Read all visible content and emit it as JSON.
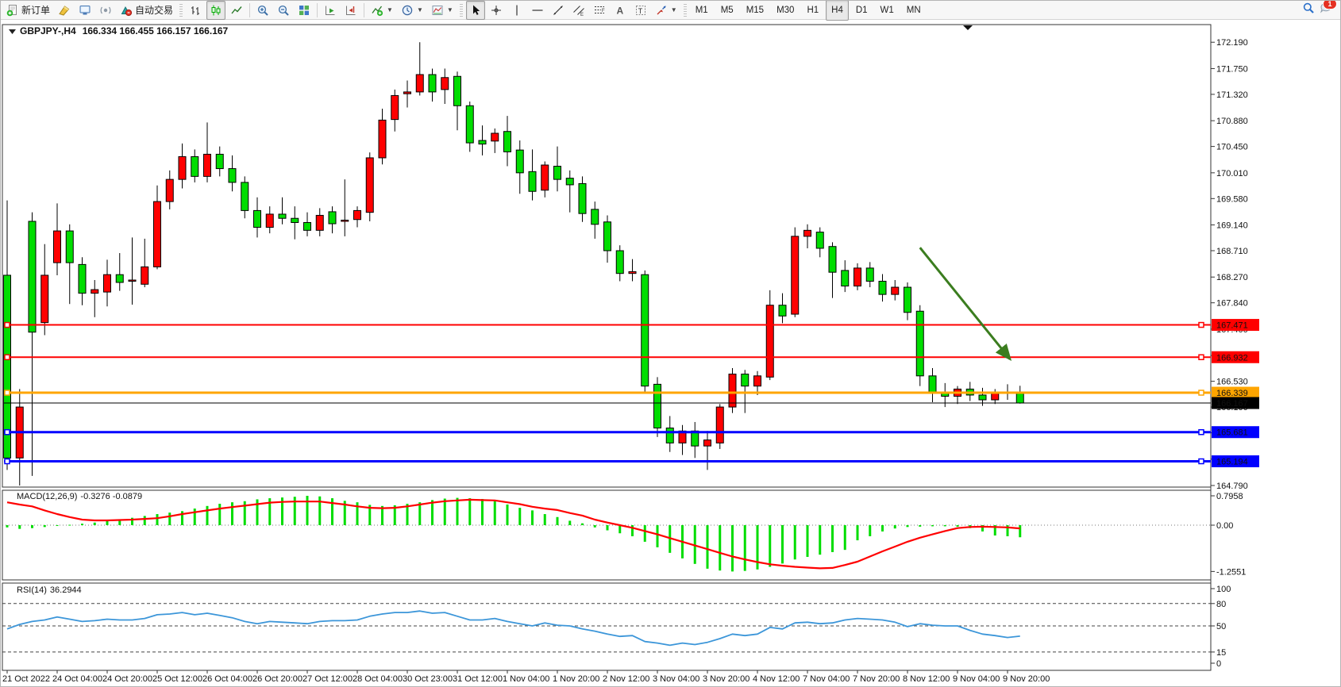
{
  "toolbar": {
    "groups": [
      {
        "items": [
          {
            "name": "new-order-button",
            "icon": "new-order-icon",
            "label": "新订单"
          },
          {
            "name": "styler-button",
            "icon": "chisel-icon"
          },
          {
            "name": "terminal-button",
            "icon": "terminal-icon"
          },
          {
            "name": "news-button",
            "icon": "signal-icon"
          },
          {
            "name": "auto-trading-button",
            "icon": "autotrade-icon",
            "label": "自动交易"
          }
        ]
      },
      {
        "items": [
          {
            "name": "bar-chart-button",
            "icon": "bars-chart-icon"
          },
          {
            "name": "candlestick-chart-button",
            "icon": "candles-chart-icon",
            "pressed": true
          },
          {
            "name": "line-chart-button",
            "icon": "line-chart-icon"
          }
        ]
      },
      {
        "items": [
          {
            "name": "zoom-in-button",
            "icon": "zoom-in-icon"
          },
          {
            "name": "zoom-out-button",
            "icon": "zoom-out-icon"
          },
          {
            "name": "tile-windows-button",
            "icon": "tile-windows-icon"
          }
        ]
      },
      {
        "items": [
          {
            "name": "auto-scroll-button",
            "icon": "autoscroll-icon"
          },
          {
            "name": "chart-shift-button",
            "icon": "chart-shift-icon"
          }
        ]
      },
      {
        "items": [
          {
            "name": "indicators-button",
            "icon": "indicators-icon",
            "caret": true
          },
          {
            "name": "periods-button",
            "icon": "clock-icon",
            "caret": true
          },
          {
            "name": "templates-button",
            "icon": "templates-icon",
            "caret": true
          }
        ]
      },
      {
        "items": [
          {
            "name": "cursor-button",
            "icon": "cursor-icon",
            "pressed": true
          },
          {
            "name": "crosshair-button",
            "icon": "crosshair-icon"
          },
          {
            "name": "vertical-line-button",
            "icon": "vline-icon"
          },
          {
            "name": "horizontal-line-button",
            "icon": "hline-icon"
          },
          {
            "name": "trendline-button",
            "icon": "trendline-icon"
          },
          {
            "name": "equidistant-channel-button",
            "icon": "channel-icon"
          },
          {
            "name": "fibonacci-button",
            "icon": "fibo-icon"
          },
          {
            "name": "text-button",
            "icon": "text-icon"
          },
          {
            "name": "text-label-button",
            "icon": "label-icon"
          },
          {
            "name": "arrows-button",
            "icon": "arrows-icon",
            "caret": true
          }
        ]
      },
      {
        "items": [
          {
            "name": "timeframe-m1-button",
            "label": "M1",
            "tf": true
          },
          {
            "name": "timeframe-m5-button",
            "label": "M5",
            "tf": true
          },
          {
            "name": "timeframe-m15-button",
            "label": "M15",
            "tf": true
          },
          {
            "name": "timeframe-m30-button",
            "label": "M30",
            "tf": true
          },
          {
            "name": "timeframe-h1-button",
            "label": "H1",
            "tf": true
          },
          {
            "name": "timeframe-h4-button",
            "label": "H4",
            "tf": true,
            "pressed": true
          },
          {
            "name": "timeframe-d1-button",
            "label": "D1",
            "tf": true
          },
          {
            "name": "timeframe-w1-button",
            "label": "W1",
            "tf": true
          },
          {
            "name": "timeframe-mn-button",
            "label": "MN",
            "tf": true
          }
        ]
      }
    ],
    "right": [
      {
        "name": "search-button",
        "icon": "search-icon"
      },
      {
        "name": "notifications-button",
        "icon": "chat-icon",
        "badge": "1"
      }
    ]
  },
  "chart": {
    "title_symbol": "GBPJPY-,H4",
    "title_ohlc": "166.334 166.455 166.157 166.167"
  },
  "chart_data": {
    "type": "candlestick",
    "symbol": "GBPJPY-",
    "timeframe": "H4",
    "bull_color": "#ff0000",
    "bear_color": "#00dd00",
    "last_bar": {
      "open": 166.334,
      "high": 166.455,
      "low": 166.157,
      "close": 166.167
    },
    "y_axis_ticks": [
      "172.190",
      "171.750",
      "171.320",
      "170.880",
      "170.450",
      "170.010",
      "169.580",
      "169.140",
      "168.710",
      "168.270",
      "167.840",
      "167.400",
      "166.960",
      "166.530",
      "166.100",
      "165.670",
      "165.230",
      "164.790"
    ],
    "x_labels": [
      "21 Oct 2022",
      "24 Oct 04:00",
      "24 Oct 20:00",
      "25 Oct 12:00",
      "26 Oct 04:00",
      "26 Oct 20:00",
      "27 Oct 12:00",
      "28 Oct 04:00",
      "30 Oct 23:00",
      "31 Oct 12:00",
      "1 Nov 04:00",
      "1 Nov 20:00",
      "2 Nov 12:00",
      "3 Nov 04:00",
      "3 Nov 20:00",
      "4 Nov 12:00",
      "7 Nov 04:00",
      "7 Nov 20:00",
      "8 Nov 12:00",
      "9 Nov 04:00",
      "9 Nov 20:00"
    ],
    "label_every_n_bars": 4,
    "candles": [
      [
        168.3,
        169.55,
        165.05,
        165.25
      ],
      [
        165.25,
        166.4,
        164.79,
        166.1
      ],
      [
        169.2,
        169.35,
        164.95,
        167.35
      ],
      [
        167.51,
        168.82,
        167.3,
        168.3
      ],
      [
        168.51,
        169.5,
        168.3,
        169.04
      ],
      [
        169.04,
        169.15,
        167.82,
        168.51
      ],
      [
        168.48,
        168.6,
        167.8,
        168.0
      ],
      [
        168.0,
        168.22,
        167.6,
        168.06
      ],
      [
        168.02,
        168.56,
        167.78,
        168.31
      ],
      [
        168.31,
        168.67,
        168.04,
        168.18
      ],
      [
        168.2,
        168.93,
        167.81,
        168.22
      ],
      [
        168.15,
        168.91,
        168.1,
        168.44
      ],
      [
        168.44,
        169.8,
        168.4,
        169.53
      ],
      [
        169.53,
        170.05,
        169.4,
        169.9
      ],
      [
        169.9,
        170.5,
        169.75,
        170.28
      ],
      [
        170.28,
        170.4,
        169.85,
        169.95
      ],
      [
        169.95,
        170.85,
        169.85,
        170.32
      ],
      [
        170.32,
        170.45,
        169.95,
        170.08
      ],
      [
        170.08,
        170.3,
        169.7,
        169.85
      ],
      [
        169.85,
        169.95,
        169.25,
        169.38
      ],
      [
        169.38,
        169.6,
        168.93,
        169.1
      ],
      [
        169.1,
        169.45,
        169.0,
        169.32
      ],
      [
        169.32,
        169.6,
        169.15,
        169.25
      ],
      [
        169.25,
        169.45,
        168.9,
        169.18
      ],
      [
        169.18,
        169.35,
        168.95,
        169.05
      ],
      [
        169.05,
        169.42,
        168.95,
        169.3
      ],
      [
        169.36,
        169.45,
        169.0,
        169.16
      ],
      [
        169.2,
        169.9,
        168.95,
        169.22
      ],
      [
        169.23,
        169.45,
        169.1,
        169.38
      ],
      [
        169.35,
        170.35,
        169.2,
        170.26
      ],
      [
        170.26,
        171.08,
        170.15,
        170.89
      ],
      [
        170.9,
        171.4,
        170.7,
        171.3
      ],
      [
        171.33,
        171.55,
        171.1,
        171.36
      ],
      [
        171.36,
        172.19,
        171.3,
        171.65
      ],
      [
        171.65,
        171.75,
        171.2,
        171.36
      ],
      [
        171.4,
        171.75,
        171.16,
        171.6
      ],
      [
        171.62,
        171.7,
        170.72,
        171.13
      ],
      [
        171.13,
        171.2,
        170.36,
        170.51
      ],
      [
        170.55,
        170.8,
        170.3,
        170.49
      ],
      [
        170.54,
        170.75,
        170.34,
        170.67
      ],
      [
        170.7,
        170.96,
        170.12,
        170.36
      ],
      [
        170.39,
        170.55,
        169.66,
        170.01
      ],
      [
        170.03,
        170.4,
        169.55,
        169.7
      ],
      [
        169.72,
        170.2,
        169.6,
        170.14
      ],
      [
        170.12,
        170.45,
        169.7,
        169.9
      ],
      [
        169.92,
        170.05,
        169.35,
        169.81
      ],
      [
        169.83,
        169.95,
        169.19,
        169.33
      ],
      [
        169.4,
        169.53,
        168.91,
        169.15
      ],
      [
        169.19,
        169.3,
        168.51,
        168.71
      ],
      [
        168.71,
        168.8,
        168.2,
        168.33
      ],
      [
        168.33,
        168.57,
        168.2,
        168.36
      ],
      [
        168.31,
        168.38,
        166.35,
        166.45
      ],
      [
        166.48,
        166.6,
        165.6,
        165.75
      ],
      [
        165.75,
        165.95,
        165.35,
        165.5
      ],
      [
        165.5,
        165.8,
        165.3,
        165.7
      ],
      [
        165.7,
        165.85,
        165.25,
        165.45
      ],
      [
        165.45,
        165.7,
        165.05,
        165.55
      ],
      [
        165.5,
        166.15,
        165.4,
        166.1
      ],
      [
        166.1,
        166.75,
        166.0,
        166.65
      ],
      [
        166.65,
        166.72,
        166.0,
        166.45
      ],
      [
        166.45,
        166.7,
        166.3,
        166.62
      ],
      [
        166.6,
        168.05,
        166.55,
        167.8
      ],
      [
        167.8,
        168.0,
        167.5,
        167.62
      ],
      [
        167.65,
        169.1,
        167.6,
        168.95
      ],
      [
        168.95,
        169.15,
        168.75,
        169.05
      ],
      [
        169.02,
        169.1,
        168.6,
        168.75
      ],
      [
        168.78,
        168.85,
        167.92,
        168.35
      ],
      [
        168.38,
        168.55,
        168.02,
        168.12
      ],
      [
        168.12,
        168.5,
        168.05,
        168.42
      ],
      [
        168.42,
        168.52,
        168.1,
        168.2
      ],
      [
        168.2,
        168.32,
        167.86,
        167.98
      ],
      [
        167.98,
        168.22,
        167.88,
        168.1
      ],
      [
        168.1,
        168.18,
        167.55,
        167.68
      ],
      [
        167.7,
        167.8,
        166.45,
        166.62
      ],
      [
        166.62,
        166.75,
        166.18,
        166.35
      ],
      [
        166.35,
        166.5,
        166.1,
        166.28
      ],
      [
        166.28,
        166.45,
        166.15,
        166.4
      ],
      [
        166.4,
        166.52,
        166.2,
        166.3
      ],
      [
        166.3,
        166.42,
        166.12,
        166.22
      ],
      [
        166.22,
        166.4,
        166.15,
        166.35
      ],
      [
        166.35,
        166.48,
        166.22,
        166.33
      ],
      [
        166.334,
        166.455,
        166.157,
        166.167
      ]
    ],
    "h_lines": [
      {
        "price": 167.471,
        "label": "167.471",
        "color": "#ff0000",
        "width": 2,
        "handles": true
      },
      {
        "price": 166.932,
        "label": "166.932",
        "color": "#ff0000",
        "width": 2,
        "handles": true
      },
      {
        "price": 166.339,
        "label": "166.339",
        "color": "#ffa500",
        "width": 3,
        "handles": true
      },
      {
        "price": 166.167,
        "label": "166.167",
        "color": "#000000",
        "width": 1,
        "handles": false
      },
      {
        "price": 165.681,
        "label": "165.681",
        "color": "#0000ff",
        "width": 3,
        "handles": true
      },
      {
        "price": 165.194,
        "label": "165.194",
        "color": "#0000ff",
        "width": 3,
        "handles": true
      }
    ],
    "arrow": {
      "from_bar": 73,
      "from_price": 168.76,
      "to_bar": 80.2,
      "to_price": 166.9,
      "color": "#3b7d1f"
    },
    "macd": {
      "label": "MACD(12,26,9)",
      "values_label": "-0.3276 -0.0879",
      "scale_top": "0.7958",
      "scale_zero": "0.00",
      "scale_bottom": "-1.2551",
      "hist_color": "#00dd00",
      "signal_color": "#ff0000",
      "histogram": [
        -0.06,
        -0.1,
        -0.08,
        -0.05,
        -0.02,
        0.01,
        0.04,
        0.07,
        0.12,
        0.16,
        0.2,
        0.25,
        0.3,
        0.34,
        0.38,
        0.45,
        0.52,
        0.58,
        0.62,
        0.65,
        0.7,
        0.73,
        0.75,
        0.77,
        0.7958,
        0.78,
        0.73,
        0.66,
        0.62,
        0.55,
        0.52,
        0.54,
        0.58,
        0.62,
        0.68,
        0.72,
        0.74,
        0.73,
        0.71,
        0.65,
        0.56,
        0.47,
        0.4,
        0.3,
        0.22,
        0.12,
        0.05,
        -0.06,
        -0.14,
        -0.22,
        -0.3,
        -0.45,
        -0.6,
        -0.75,
        -0.9,
        -1.05,
        -1.18,
        -1.23,
        -1.2551,
        -1.24,
        -1.2,
        -1.13,
        -1.04,
        -0.93,
        -0.86,
        -0.8,
        -0.73,
        -0.67,
        -0.41,
        -0.3,
        -0.17,
        -0.09,
        -0.05,
        -0.04,
        -0.03,
        -0.03,
        -0.04,
        -0.08,
        -0.17,
        -0.28,
        -0.3,
        -0.3276
      ],
      "signal": [
        0.62,
        0.56,
        0.51,
        0.4,
        0.3,
        0.22,
        0.15,
        0.13,
        0.13,
        0.14,
        0.15,
        0.17,
        0.19,
        0.24,
        0.3,
        0.35,
        0.4,
        0.45,
        0.49,
        0.53,
        0.57,
        0.61,
        0.63,
        0.64,
        0.64,
        0.64,
        0.6,
        0.56,
        0.51,
        0.47,
        0.46,
        0.47,
        0.51,
        0.56,
        0.61,
        0.65,
        0.67,
        0.69,
        0.68,
        0.67,
        0.62,
        0.57,
        0.5,
        0.45,
        0.41,
        0.33,
        0.26,
        0.15,
        0.07,
        0.0,
        -0.07,
        -0.16,
        -0.25,
        -0.35,
        -0.45,
        -0.55,
        -0.65,
        -0.75,
        -0.85,
        -0.93,
        -1.0,
        -1.06,
        -1.1,
        -1.13,
        -1.15,
        -1.17,
        -1.16,
        -1.08,
        -0.99,
        -0.85,
        -0.71,
        -0.58,
        -0.45,
        -0.34,
        -0.25,
        -0.16,
        -0.08,
        -0.05,
        -0.04,
        -0.05,
        -0.06,
        -0.0879
      ]
    },
    "rsi": {
      "label": "RSI(14)",
      "value_label": "36.2944",
      "color": "#3c96d9",
      "levels": [
        80,
        50,
        15
      ],
      "scale_labels": [
        "100",
        "80",
        "50",
        "15",
        "0"
      ],
      "values": [
        46,
        52,
        56,
        58,
        62,
        59,
        56,
        57,
        59,
        58,
        58,
        60,
        65,
        66,
        68,
        65,
        67,
        64,
        61,
        56,
        53,
        56,
        55,
        54,
        53,
        56,
        57,
        57,
        58,
        63,
        66,
        68,
        68,
        70,
        67,
        68,
        63,
        58,
        58,
        60,
        56,
        53,
        50,
        54,
        51,
        50,
        46,
        43,
        39,
        36,
        37,
        29,
        27,
        24,
        27,
        25,
        28,
        33,
        39,
        37,
        39,
        48,
        46,
        54,
        55,
        53,
        54,
        58,
        60,
        59,
        58,
        55,
        49,
        53,
        51,
        50,
        50,
        44,
        39,
        37,
        34.5,
        36.2944
      ]
    }
  }
}
